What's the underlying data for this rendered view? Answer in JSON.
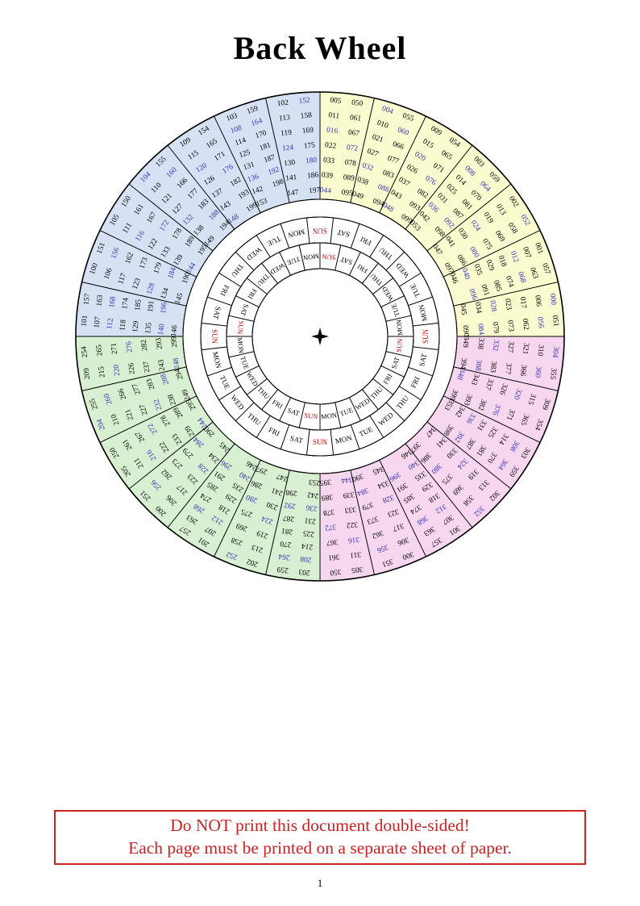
{
  "page": {
    "title": "Back Wheel",
    "page_number": "1",
    "warning": {
      "line1": "Do NOT print this document double-sided!",
      "line2": "Each page must be printed on a separate sheet of paper."
    }
  },
  "wheel": {
    "colors": {
      "leap_year": "#3333bb",
      "common_year": "#000000",
      "sunday": "#cc0000",
      "weekday": "#000000",
      "cell_fill": "#ffffff",
      "line": "#000000"
    },
    "centuries": [
      {
        "name": "years-000-099",
        "fill": "#fbfbd0",
        "start_angle": 0,
        "sectors": [
          [
            [
              "005",
              "011",
              "016",
              "022",
              "033",
              "039",
              "044"
            ],
            [
              "050",
              "061",
              "067",
              "072",
              "078",
              "089",
              "095"
            ]
          ],
          [
            [
              "004",
              "010",
              "021",
              "027",
              "032",
              "038",
              "049"
            ],
            [
              "055",
              "060",
              "066",
              "077",
              "083",
              "088",
              "094"
            ]
          ],
          [
            [
              "009",
              "015",
              "020",
              "026",
              "037",
              "043",
              "048"
            ],
            [
              "054",
              "065",
              "071",
              "076",
              "082",
              "093",
              "099"
            ]
          ],
          [
            [
              "003",
              "008",
              "014",
              "025",
              "031",
              "036",
              "042",
              "053"
            ],
            [
              "059",
              "064",
              "070",
              "081",
              "087",
              "092",
              "098"
            ]
          ],
          [
            [
              "002",
              "013",
              "019",
              "024",
              "030",
              "041",
              "047"
            ],
            [
              "052",
              "058",
              "069",
              "075",
              "080",
              "086",
              "097"
            ]
          ],
          [
            [
              "001",
              "007",
              "012",
              "018",
              "029",
              "035",
              "040",
              "046"
            ],
            [
              "057",
              "063",
              "068",
              "074",
              "085",
              "091",
              "096"
            ]
          ],
          [
            [
              "000",
              "006",
              "017",
              "023",
              "028",
              "034",
              "045"
            ],
            [
              "051",
              "056",
              "062",
              "073",
              "079",
              "084",
              "090"
            ]
          ]
        ]
      },
      {
        "name": "years-300-399",
        "fill": "#f7d6ef",
        "start_angle": 90,
        "sectors": [
          [
            [
              "304",
              "310",
              "321",
              "327",
              "332",
              "338",
              "349"
            ],
            [
              "355",
              "360",
              "366",
              "377",
              "383",
              "388",
              "394"
            ]
          ],
          [
            [
              "309",
              "315",
              "320",
              "326",
              "337",
              "343",
              "348"
            ],
            [
              "354",
              "365",
              "371",
              "376",
              "382",
              "393",
              "399"
            ]
          ],
          [
            [
              "303",
              "308",
              "314",
              "325",
              "331",
              "336",
              "342",
              "353"
            ],
            [
              "359",
              "364",
              "370",
              "381",
              "387",
              "392",
              "398"
            ]
          ],
          [
            [
              "302",
              "313",
              "319",
              "324",
              "330",
              "341",
              "347"
            ],
            [
              "352",
              "358",
              "369",
              "375",
              "380",
              "386",
              "397"
            ]
          ],
          [
            [
              "301",
              "307",
              "312",
              "318",
              "329",
              "335",
              "340",
              "346"
            ],
            [
              "357",
              "363",
              "368",
              "374",
              "385",
              "391",
              "396"
            ]
          ],
          [
            [
              "300",
              "306",
              "317",
              "323",
              "328",
              "334",
              "345"
            ],
            [
              "351",
              "356",
              "362",
              "373",
              "379",
              "384",
              "390"
            ]
          ],
          [
            [
              "305",
              "311",
              "316",
              "322",
              "333",
              "339",
              "344"
            ],
            [
              "350",
              "361",
              "367",
              "372",
              "378",
              "389",
              "395"
            ]
          ]
        ]
      },
      {
        "name": "years-200-299",
        "fill": "#d9efd2",
        "start_angle": 180,
        "sectors": [
          [
            [
              "203",
              "208",
              "214",
              "225",
              "231",
              "236",
              "242",
              "253"
            ],
            [
              "259",
              "264",
              "270",
              "281",
              "287",
              "292",
              "298"
            ]
          ],
          [
            [
              "202",
              "213",
              "219",
              "224",
              "230",
              "241",
              "247"
            ],
            [
              "252",
              "258",
              "269",
              "275",
              "280",
              "286",
              "297"
            ]
          ],
          [
            [
              "201",
              "207",
              "212",
              "218",
              "229",
              "235",
              "240",
              "246"
            ],
            [
              "257",
              "263",
              "268",
              "274",
              "285",
              "291",
              "296"
            ]
          ],
          [
            [
              "200",
              "206",
              "217",
              "223",
              "228",
              "234",
              "245"
            ],
            [
              "251",
              "256",
              "262",
              "273",
              "279",
              "284",
              "290"
            ]
          ],
          [
            [
              "205",
              "211",
              "216",
              "222",
              "233",
              "239",
              "244"
            ],
            [
              "250",
              "261",
              "267",
              "272",
              "278",
              "289",
              "295"
            ]
          ],
          [
            [
              "204",
              "210",
              "221",
              "227",
              "232",
              "238",
              "249"
            ],
            [
              "255",
              "260",
              "266",
              "277",
              "283",
              "288",
              "294"
            ]
          ],
          [
            [
              "209",
              "215",
              "220",
              "226",
              "237",
              "243",
              "248"
            ],
            [
              "254",
              "265",
              "271",
              "276",
              "282",
              "293",
              "299"
            ]
          ]
        ]
      },
      {
        "name": "years-100-199",
        "fill": "#d6e2f4",
        "start_angle": 270,
        "sectors": [
          [
            [
              "101",
              "107",
              "112",
              "118",
              "129",
              "135",
              "140",
              "146"
            ],
            [
              "157",
              "163",
              "168",
              "174",
              "185",
              "191",
              "196"
            ]
          ],
          [
            [
              "100",
              "106",
              "117",
              "123",
              "128",
              "134",
              "145"
            ],
            [
              "151",
              "156",
              "162",
              "173",
              "179",
              "184",
              "190"
            ]
          ],
          [
            [
              "105",
              "111",
              "116",
              "122",
              "133",
              "139",
              "144"
            ],
            [
              "150",
              "161",
              "167",
              "172",
              "178",
              "189",
              "195"
            ]
          ],
          [
            [
              "104",
              "110",
              "121",
              "127",
              "132",
              "138",
              "149"
            ],
            [
              "155",
              "160",
              "166",
              "177",
              "183",
              "188",
              "194"
            ]
          ],
          [
            [
              "109",
              "115",
              "120",
              "126",
              "137",
              "143",
              "148"
            ],
            [
              "154",
              "165",
              "171",
              "176",
              "182",
              "193",
              "199"
            ]
          ],
          [
            [
              "103",
              "108",
              "114",
              "125",
              "131",
              "136",
              "142",
              "153"
            ],
            [
              "159",
              "164",
              "170",
              "181",
              "187",
              "192",
              "198"
            ]
          ],
          [
            [
              "102",
              "113",
              "119",
              "124",
              "130",
              "141",
              "147"
            ],
            [
              "152",
              "158",
              "169",
              "175",
              "180",
              "186",
              "197"
            ]
          ]
        ]
      }
    ],
    "day_rings": [
      {
        "name": "outer-day-ring",
        "start_angle": 0,
        "sequence_clockwise": [
          "SUN",
          "SAT",
          "FRI",
          "THU",
          "WED",
          "TUE",
          "MON"
        ],
        "repeats": 4
      },
      {
        "name": "inner-day-ring",
        "start_angle": 96.43,
        "sequence_clockwise": [
          "SUN",
          "SAT",
          "FRI",
          "THU",
          "WED",
          "TUE",
          "MON"
        ],
        "repeats": 4
      }
    ]
  }
}
